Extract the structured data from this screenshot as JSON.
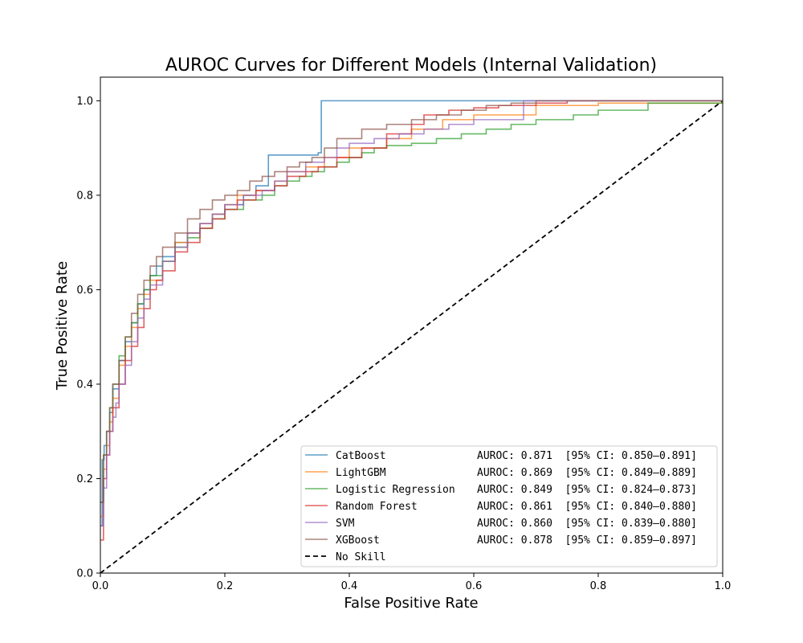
{
  "chart_data": {
    "type": "line",
    "title": "AUROC Curves for Different Models (Internal Validation)",
    "xlabel": "False Positive Rate",
    "ylabel": "True Positive Rate",
    "xlim": [
      0.0,
      1.0
    ],
    "ylim": [
      0.0,
      1.05
    ],
    "xticks": [
      0.0,
      0.2,
      0.4,
      0.6,
      0.8,
      1.0
    ],
    "yticks": [
      0.0,
      0.2,
      0.4,
      0.6,
      0.8,
      1.0
    ],
    "xtick_labels": [
      "0.0",
      "0.2",
      "0.4",
      "0.6",
      "0.8",
      "1.0"
    ],
    "ytick_labels": [
      "0.0",
      "0.2",
      "0.4",
      "0.6",
      "0.8",
      "1.0"
    ],
    "grid": false,
    "legend_position": "lower-right",
    "series": [
      {
        "name": "CatBoost",
        "legend_name": "CatBoost           ",
        "legend_stats": "AUROC: 0.871  [95% CI: 0.850–0.891]",
        "color": "#1f77b4",
        "step": true,
        "x": [
          0.0,
          0.003,
          0.006,
          0.01,
          0.015,
          0.02,
          0.03,
          0.04,
          0.05,
          0.06,
          0.07,
          0.08,
          0.09,
          0.1,
          0.12,
          0.14,
          0.16,
          0.18,
          0.2,
          0.23,
          0.25,
          0.27,
          0.3,
          0.35,
          0.355,
          1.0
        ],
        "y": [
          0.1,
          0.24,
          0.27,
          0.3,
          0.34,
          0.39,
          0.45,
          0.49,
          0.53,
          0.57,
          0.6,
          0.63,
          0.65,
          0.67,
          0.7,
          0.72,
          0.74,
          0.76,
          0.78,
          0.8,
          0.82,
          0.885,
          0.885,
          0.89,
          1.0,
          1.0
        ]
      },
      {
        "name": "LightGBM",
        "legend_name": "LightGBM           ",
        "legend_stats": "AUROC: 0.869  [95% CI: 0.849–0.889]",
        "color": "#ff7f0e",
        "step": true,
        "x": [
          0.0,
          0.005,
          0.01,
          0.015,
          0.02,
          0.03,
          0.04,
          0.05,
          0.06,
          0.07,
          0.08,
          0.1,
          0.12,
          0.14,
          0.16,
          0.18,
          0.2,
          0.22,
          0.25,
          0.28,
          0.3,
          0.33,
          0.36,
          0.4,
          0.46,
          0.5,
          0.55,
          0.6,
          0.7,
          0.8,
          1.0
        ],
        "y": [
          0.12,
          0.22,
          0.27,
          0.32,
          0.37,
          0.44,
          0.48,
          0.52,
          0.56,
          0.59,
          0.62,
          0.66,
          0.7,
          0.72,
          0.74,
          0.76,
          0.78,
          0.8,
          0.81,
          0.83,
          0.85,
          0.86,
          0.88,
          0.9,
          0.92,
          0.94,
          0.96,
          0.97,
          0.99,
          0.995,
          1.0
        ]
      },
      {
        "name": "Logistic Regression",
        "legend_name": "Logistic Regression",
        "legend_stats": "AUROC: 0.849  [95% CI: 0.824–0.873]",
        "color": "#2ca02c",
        "step": true,
        "x": [
          0.0,
          0.005,
          0.01,
          0.015,
          0.02,
          0.03,
          0.04,
          0.05,
          0.06,
          0.07,
          0.08,
          0.1,
          0.12,
          0.14,
          0.16,
          0.18,
          0.2,
          0.23,
          0.26,
          0.28,
          0.3,
          0.32,
          0.34,
          0.36,
          0.38,
          0.4,
          0.42,
          0.44,
          0.46,
          0.5,
          0.54,
          0.58,
          0.62,
          0.66,
          0.7,
          0.76,
          0.8,
          0.88,
          1.0
        ],
        "y": [
          0.15,
          0.25,
          0.3,
          0.35,
          0.4,
          0.46,
          0.5,
          0.53,
          0.57,
          0.6,
          0.63,
          0.66,
          0.69,
          0.71,
          0.73,
          0.75,
          0.77,
          0.79,
          0.8,
          0.82,
          0.83,
          0.84,
          0.85,
          0.86,
          0.87,
          0.88,
          0.89,
          0.9,
          0.905,
          0.91,
          0.92,
          0.93,
          0.94,
          0.95,
          0.96,
          0.97,
          0.98,
          0.995,
          1.0
        ]
      },
      {
        "name": "Random Forest",
        "legend_name": "Random Forest      ",
        "legend_stats": "AUROC: 0.861  [95% CI: 0.840–0.880]",
        "color": "#d62728",
        "step": true,
        "x": [
          0.0,
          0.005,
          0.01,
          0.015,
          0.02,
          0.03,
          0.04,
          0.05,
          0.06,
          0.07,
          0.08,
          0.09,
          0.1,
          0.12,
          0.14,
          0.16,
          0.18,
          0.2,
          0.22,
          0.25,
          0.28,
          0.3,
          0.33,
          0.35,
          0.38,
          0.42,
          0.46,
          0.5,
          0.52,
          0.56,
          0.6,
          0.64,
          0.7,
          0.75,
          0.8,
          1.0
        ],
        "y": [
          0.07,
          0.2,
          0.25,
          0.3,
          0.35,
          0.4,
          0.45,
          0.48,
          0.52,
          0.56,
          0.6,
          0.62,
          0.64,
          0.68,
          0.7,
          0.73,
          0.75,
          0.77,
          0.79,
          0.81,
          0.82,
          0.84,
          0.85,
          0.86,
          0.88,
          0.9,
          0.93,
          0.95,
          0.97,
          0.98,
          0.985,
          0.99,
          0.995,
          1.0,
          1.0,
          1.0
        ]
      },
      {
        "name": "SVM",
        "legend_name": "SVM                ",
        "legend_stats": "AUROC: 0.860  [95% CI: 0.839–0.880]",
        "color": "#9467bd",
        "step": true,
        "x": [
          0.0,
          0.005,
          0.01,
          0.015,
          0.02,
          0.025,
          0.03,
          0.04,
          0.05,
          0.06,
          0.07,
          0.08,
          0.1,
          0.12,
          0.14,
          0.16,
          0.18,
          0.2,
          0.23,
          0.26,
          0.28,
          0.3,
          0.33,
          0.36,
          0.38,
          0.4,
          0.44,
          0.48,
          0.52,
          0.56,
          0.6,
          0.68,
          0.7,
          0.75,
          1.0
        ],
        "y": [
          0.1,
          0.18,
          0.25,
          0.3,
          0.33,
          0.36,
          0.4,
          0.44,
          0.49,
          0.54,
          0.58,
          0.61,
          0.66,
          0.69,
          0.72,
          0.74,
          0.76,
          0.78,
          0.8,
          0.81,
          0.83,
          0.85,
          0.87,
          0.88,
          0.9,
          0.91,
          0.92,
          0.93,
          0.94,
          0.95,
          0.96,
          1.0,
          1.0,
          1.0,
          1.0
        ]
      },
      {
        "name": "XGBoost",
        "legend_name": "XGBoost            ",
        "legend_stats": "AUROC: 0.878  [95% CI: 0.859–0.897]",
        "color": "#8c564b",
        "step": true,
        "x": [
          0.0,
          0.005,
          0.01,
          0.015,
          0.02,
          0.03,
          0.04,
          0.05,
          0.06,
          0.07,
          0.08,
          0.09,
          0.1,
          0.12,
          0.14,
          0.16,
          0.18,
          0.2,
          0.22,
          0.24,
          0.26,
          0.28,
          0.3,
          0.32,
          0.34,
          0.36,
          0.38,
          0.42,
          0.46,
          0.5,
          0.54,
          0.58,
          0.62,
          0.66,
          0.7,
          0.74,
          1.0
        ],
        "y": [
          0.15,
          0.25,
          0.3,
          0.35,
          0.4,
          0.45,
          0.5,
          0.55,
          0.59,
          0.62,
          0.65,
          0.67,
          0.69,
          0.72,
          0.75,
          0.77,
          0.79,
          0.8,
          0.81,
          0.83,
          0.84,
          0.85,
          0.86,
          0.87,
          0.88,
          0.9,
          0.92,
          0.94,
          0.95,
          0.96,
          0.97,
          0.98,
          0.99,
          0.995,
          1.0,
          1.0,
          1.0
        ]
      }
    ],
    "reference_line": {
      "name": "No Skill",
      "color": "#000000",
      "style": "dashed",
      "x": [
        0.0,
        1.0
      ],
      "y": [
        0.0,
        1.0
      ]
    }
  }
}
